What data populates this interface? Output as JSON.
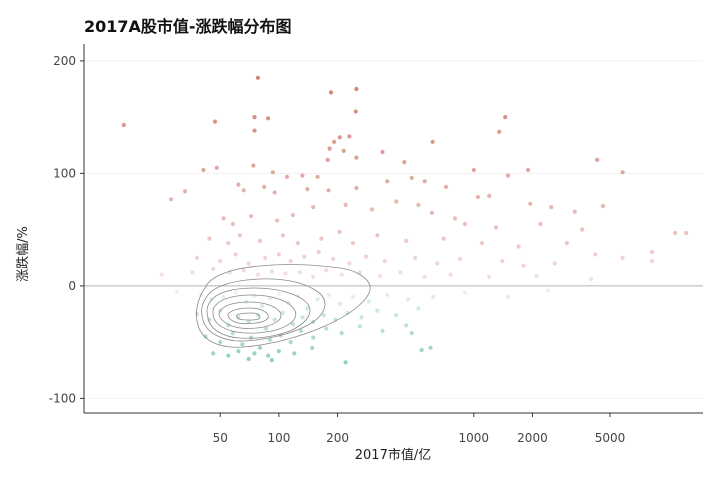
{
  "chart_data": {
    "type": "scatter",
    "title": "2017A股市值-涨跌幅分布图",
    "xlabel": "2017市值/亿",
    "ylabel": "涨跌幅/%",
    "x_scale": "log10",
    "xlim": [
      10,
      15000
    ],
    "ylim": [
      -113,
      215
    ],
    "x_ticks": [
      50,
      100,
      200,
      1000,
      2000,
      5000
    ],
    "x_tick_labels": [
      "50",
      "100",
      "200",
      "1000",
      "2000",
      "5000"
    ],
    "y_ticks": [
      -100,
      0,
      100,
      200
    ],
    "y_tick_labels": [
      "-100",
      "0",
      "100",
      "200"
    ],
    "reference_line_y": 0,
    "grid": "horizontal-light",
    "legend": "none",
    "colors": {
      "positive": "#d28578",
      "negative": "#7cc4ae",
      "contour": "#8a8a8a",
      "zero_line": "#b5b5b5",
      "axis": "#333333"
    },
    "density_contour_peak": {
      "x": 65,
      "y": -28
    },
    "series": [
      {
        "points": [
          {
            "x": 16,
            "y": 143
          },
          {
            "x": 47,
            "y": 146
          },
          {
            "x": 78,
            "y": 185
          },
          {
            "x": 75,
            "y": 150
          },
          {
            "x": 75,
            "y": 138
          },
          {
            "x": 88,
            "y": 149
          },
          {
            "x": 185,
            "y": 172
          },
          {
            "x": 250,
            "y": 175
          },
          {
            "x": 248,
            "y": 155
          },
          {
            "x": 205,
            "y": 132
          },
          {
            "x": 192,
            "y": 128
          },
          {
            "x": 230,
            "y": 133
          },
          {
            "x": 215,
            "y": 120
          },
          {
            "x": 182,
            "y": 122
          },
          {
            "x": 178,
            "y": 112
          },
          {
            "x": 250,
            "y": 114
          },
          {
            "x": 340,
            "y": 119
          },
          {
            "x": 440,
            "y": 110
          },
          {
            "x": 615,
            "y": 128
          },
          {
            "x": 1350,
            "y": 137
          },
          {
            "x": 1450,
            "y": 150
          },
          {
            "x": 1000,
            "y": 103
          },
          {
            "x": 1500,
            "y": 98
          },
          {
            "x": 1900,
            "y": 103
          },
          {
            "x": 4300,
            "y": 112
          },
          {
            "x": 5800,
            "y": 101
          },
          {
            "x": 4600,
            "y": 71
          },
          {
            "x": 41,
            "y": 103
          },
          {
            "x": 48,
            "y": 105
          },
          {
            "x": 74,
            "y": 107
          },
          {
            "x": 93,
            "y": 101
          },
          {
            "x": 110,
            "y": 97
          },
          {
            "x": 132,
            "y": 98
          },
          {
            "x": 158,
            "y": 97
          },
          {
            "x": 28,
            "y": 77
          },
          {
            "x": 33,
            "y": 84
          },
          {
            "x": 62,
            "y": 90
          },
          {
            "x": 66,
            "y": 85
          },
          {
            "x": 84,
            "y": 88
          },
          {
            "x": 95,
            "y": 83
          },
          {
            "x": 140,
            "y": 86
          },
          {
            "x": 180,
            "y": 85
          },
          {
            "x": 250,
            "y": 87
          },
          {
            "x": 360,
            "y": 93
          },
          {
            "x": 480,
            "y": 96
          },
          {
            "x": 560,
            "y": 93
          },
          {
            "x": 720,
            "y": 88
          },
          {
            "x": 1050,
            "y": 79
          },
          {
            "x": 1200,
            "y": 80
          },
          {
            "x": 1950,
            "y": 73
          },
          {
            "x": 2500,
            "y": 70
          },
          {
            "x": 3300,
            "y": 66
          },
          {
            "x": 52,
            "y": 60
          },
          {
            "x": 58,
            "y": 55
          },
          {
            "x": 72,
            "y": 62
          },
          {
            "x": 98,
            "y": 58
          },
          {
            "x": 118,
            "y": 63
          },
          {
            "x": 150,
            "y": 70
          },
          {
            "x": 220,
            "y": 72
          },
          {
            "x": 300,
            "y": 68
          },
          {
            "x": 400,
            "y": 75
          },
          {
            "x": 520,
            "y": 72
          },
          {
            "x": 610,
            "y": 65
          },
          {
            "x": 800,
            "y": 60
          },
          {
            "x": 900,
            "y": 55
          },
          {
            "x": 1300,
            "y": 52
          },
          {
            "x": 2200,
            "y": 55
          },
          {
            "x": 3600,
            "y": 50
          },
          {
            "x": 44,
            "y": 42
          },
          {
            "x": 55,
            "y": 38
          },
          {
            "x": 63,
            "y": 45
          },
          {
            "x": 80,
            "y": 40
          },
          {
            "x": 105,
            "y": 45
          },
          {
            "x": 125,
            "y": 38
          },
          {
            "x": 165,
            "y": 42
          },
          {
            "x": 205,
            "y": 48
          },
          {
            "x": 240,
            "y": 38
          },
          {
            "x": 320,
            "y": 45
          },
          {
            "x": 450,
            "y": 40
          },
          {
            "x": 700,
            "y": 42
          },
          {
            "x": 1100,
            "y": 38
          },
          {
            "x": 1700,
            "y": 35
          },
          {
            "x": 3000,
            "y": 38
          },
          {
            "x": 10800,
            "y": 47
          },
          {
            "x": 12300,
            "y": 47
          },
          {
            "x": 8200,
            "y": 30
          },
          {
            "x": 8200,
            "y": 22
          },
          {
            "x": 5800,
            "y": 25
          },
          {
            "x": 4200,
            "y": 28
          },
          {
            "x": 38,
            "y": 25
          },
          {
            "x": 50,
            "y": 22
          },
          {
            "x": 60,
            "y": 28
          },
          {
            "x": 70,
            "y": 20
          },
          {
            "x": 85,
            "y": 25
          },
          {
            "x": 100,
            "y": 28
          },
          {
            "x": 115,
            "y": 22
          },
          {
            "x": 135,
            "y": 26
          },
          {
            "x": 160,
            "y": 30
          },
          {
            "x": 190,
            "y": 24
          },
          {
            "x": 230,
            "y": 20
          },
          {
            "x": 280,
            "y": 26
          },
          {
            "x": 350,
            "y": 22
          },
          {
            "x": 500,
            "y": 25
          },
          {
            "x": 650,
            "y": 20
          },
          {
            "x": 850,
            "y": 24
          },
          {
            "x": 1400,
            "y": 22
          },
          {
            "x": 1800,
            "y": 18
          },
          {
            "x": 2600,
            "y": 20
          },
          {
            "x": 25,
            "y": 10
          },
          {
            "x": 36,
            "y": 12
          },
          {
            "x": 46,
            "y": 15
          },
          {
            "x": 56,
            "y": 12
          },
          {
            "x": 66,
            "y": 14
          },
          {
            "x": 78,
            "y": 10
          },
          {
            "x": 92,
            "y": 13
          },
          {
            "x": 108,
            "y": 11
          },
          {
            "x": 128,
            "y": 12
          },
          {
            "x": 150,
            "y": 8
          },
          {
            "x": 175,
            "y": 14
          },
          {
            "x": 210,
            "y": 10
          },
          {
            "x": 260,
            "y": 12
          },
          {
            "x": 330,
            "y": 9
          },
          {
            "x": 420,
            "y": 12
          },
          {
            "x": 560,
            "y": 8
          },
          {
            "x": 760,
            "y": 10
          },
          {
            "x": 1200,
            "y": 8
          },
          {
            "x": 2100,
            "y": 9
          },
          {
            "x": 4000,
            "y": 6
          },
          {
            "x": 30,
            "y": -5
          },
          {
            "x": 40,
            "y": -8
          },
          {
            "x": 45,
            "y": -12
          },
          {
            "x": 52,
            "y": -10
          },
          {
            "x": 60,
            "y": -6
          },
          {
            "x": 68,
            "y": -14
          },
          {
            "x": 75,
            "y": -9
          },
          {
            "x": 82,
            "y": -18
          },
          {
            "x": 90,
            "y": -11
          },
          {
            "x": 100,
            "y": -7
          },
          {
            "x": 112,
            "y": -15
          },
          {
            "x": 125,
            "y": -9
          },
          {
            "x": 140,
            "y": -20
          },
          {
            "x": 158,
            "y": -12
          },
          {
            "x": 180,
            "y": -8
          },
          {
            "x": 205,
            "y": -16
          },
          {
            "x": 240,
            "y": -10
          },
          {
            "x": 290,
            "y": -14
          },
          {
            "x": 360,
            "y": -8
          },
          {
            "x": 460,
            "y": -12
          },
          {
            "x": 620,
            "y": -10
          },
          {
            "x": 900,
            "y": -6
          },
          {
            "x": 1500,
            "y": -10
          },
          {
            "x": 2400,
            "y": -4
          },
          {
            "x": 38,
            "y": -25
          },
          {
            "x": 44,
            "y": -30
          },
          {
            "x": 50,
            "y": -22
          },
          {
            "x": 55,
            "y": -35
          },
          {
            "x": 62,
            "y": -28
          },
          {
            "x": 70,
            "y": -32
          },
          {
            "x": 78,
            "y": -26
          },
          {
            "x": 86,
            "y": -38
          },
          {
            "x": 95,
            "y": -30
          },
          {
            "x": 105,
            "y": -24
          },
          {
            "x": 118,
            "y": -34
          },
          {
            "x": 132,
            "y": -28
          },
          {
            "x": 150,
            "y": -32
          },
          {
            "x": 170,
            "y": -26
          },
          {
            "x": 195,
            "y": -30
          },
          {
            "x": 225,
            "y": -24
          },
          {
            "x": 265,
            "y": -28
          },
          {
            "x": 320,
            "y": -22
          },
          {
            "x": 400,
            "y": -26
          },
          {
            "x": 520,
            "y": -20
          },
          {
            "x": 42,
            "y": -45
          },
          {
            "x": 50,
            "y": -50
          },
          {
            "x": 58,
            "y": -42
          },
          {
            "x": 65,
            "y": -52
          },
          {
            "x": 72,
            "y": -46
          },
          {
            "x": 80,
            "y": -55
          },
          {
            "x": 90,
            "y": -48
          },
          {
            "x": 102,
            "y": -44
          },
          {
            "x": 115,
            "y": -50
          },
          {
            "x": 130,
            "y": -40
          },
          {
            "x": 150,
            "y": -46
          },
          {
            "x": 175,
            "y": -38
          },
          {
            "x": 210,
            "y": -42
          },
          {
            "x": 260,
            "y": -36
          },
          {
            "x": 340,
            "y": -40
          },
          {
            "x": 450,
            "y": -35
          },
          {
            "x": 480,
            "y": -42
          },
          {
            "x": 600,
            "y": -55
          },
          {
            "x": 540,
            "y": -57
          },
          {
            "x": 46,
            "y": -60
          },
          {
            "x": 55,
            "y": -62
          },
          {
            "x": 62,
            "y": -58
          },
          {
            "x": 70,
            "y": -65
          },
          {
            "x": 75,
            "y": -60
          },
          {
            "x": 88,
            "y": -62
          },
          {
            "x": 100,
            "y": -58
          },
          {
            "x": 120,
            "y": -60
          },
          {
            "x": 220,
            "y": -68
          },
          {
            "x": 148,
            "y": -55
          },
          {
            "x": 92,
            "y": -66
          }
        ]
      }
    ]
  }
}
